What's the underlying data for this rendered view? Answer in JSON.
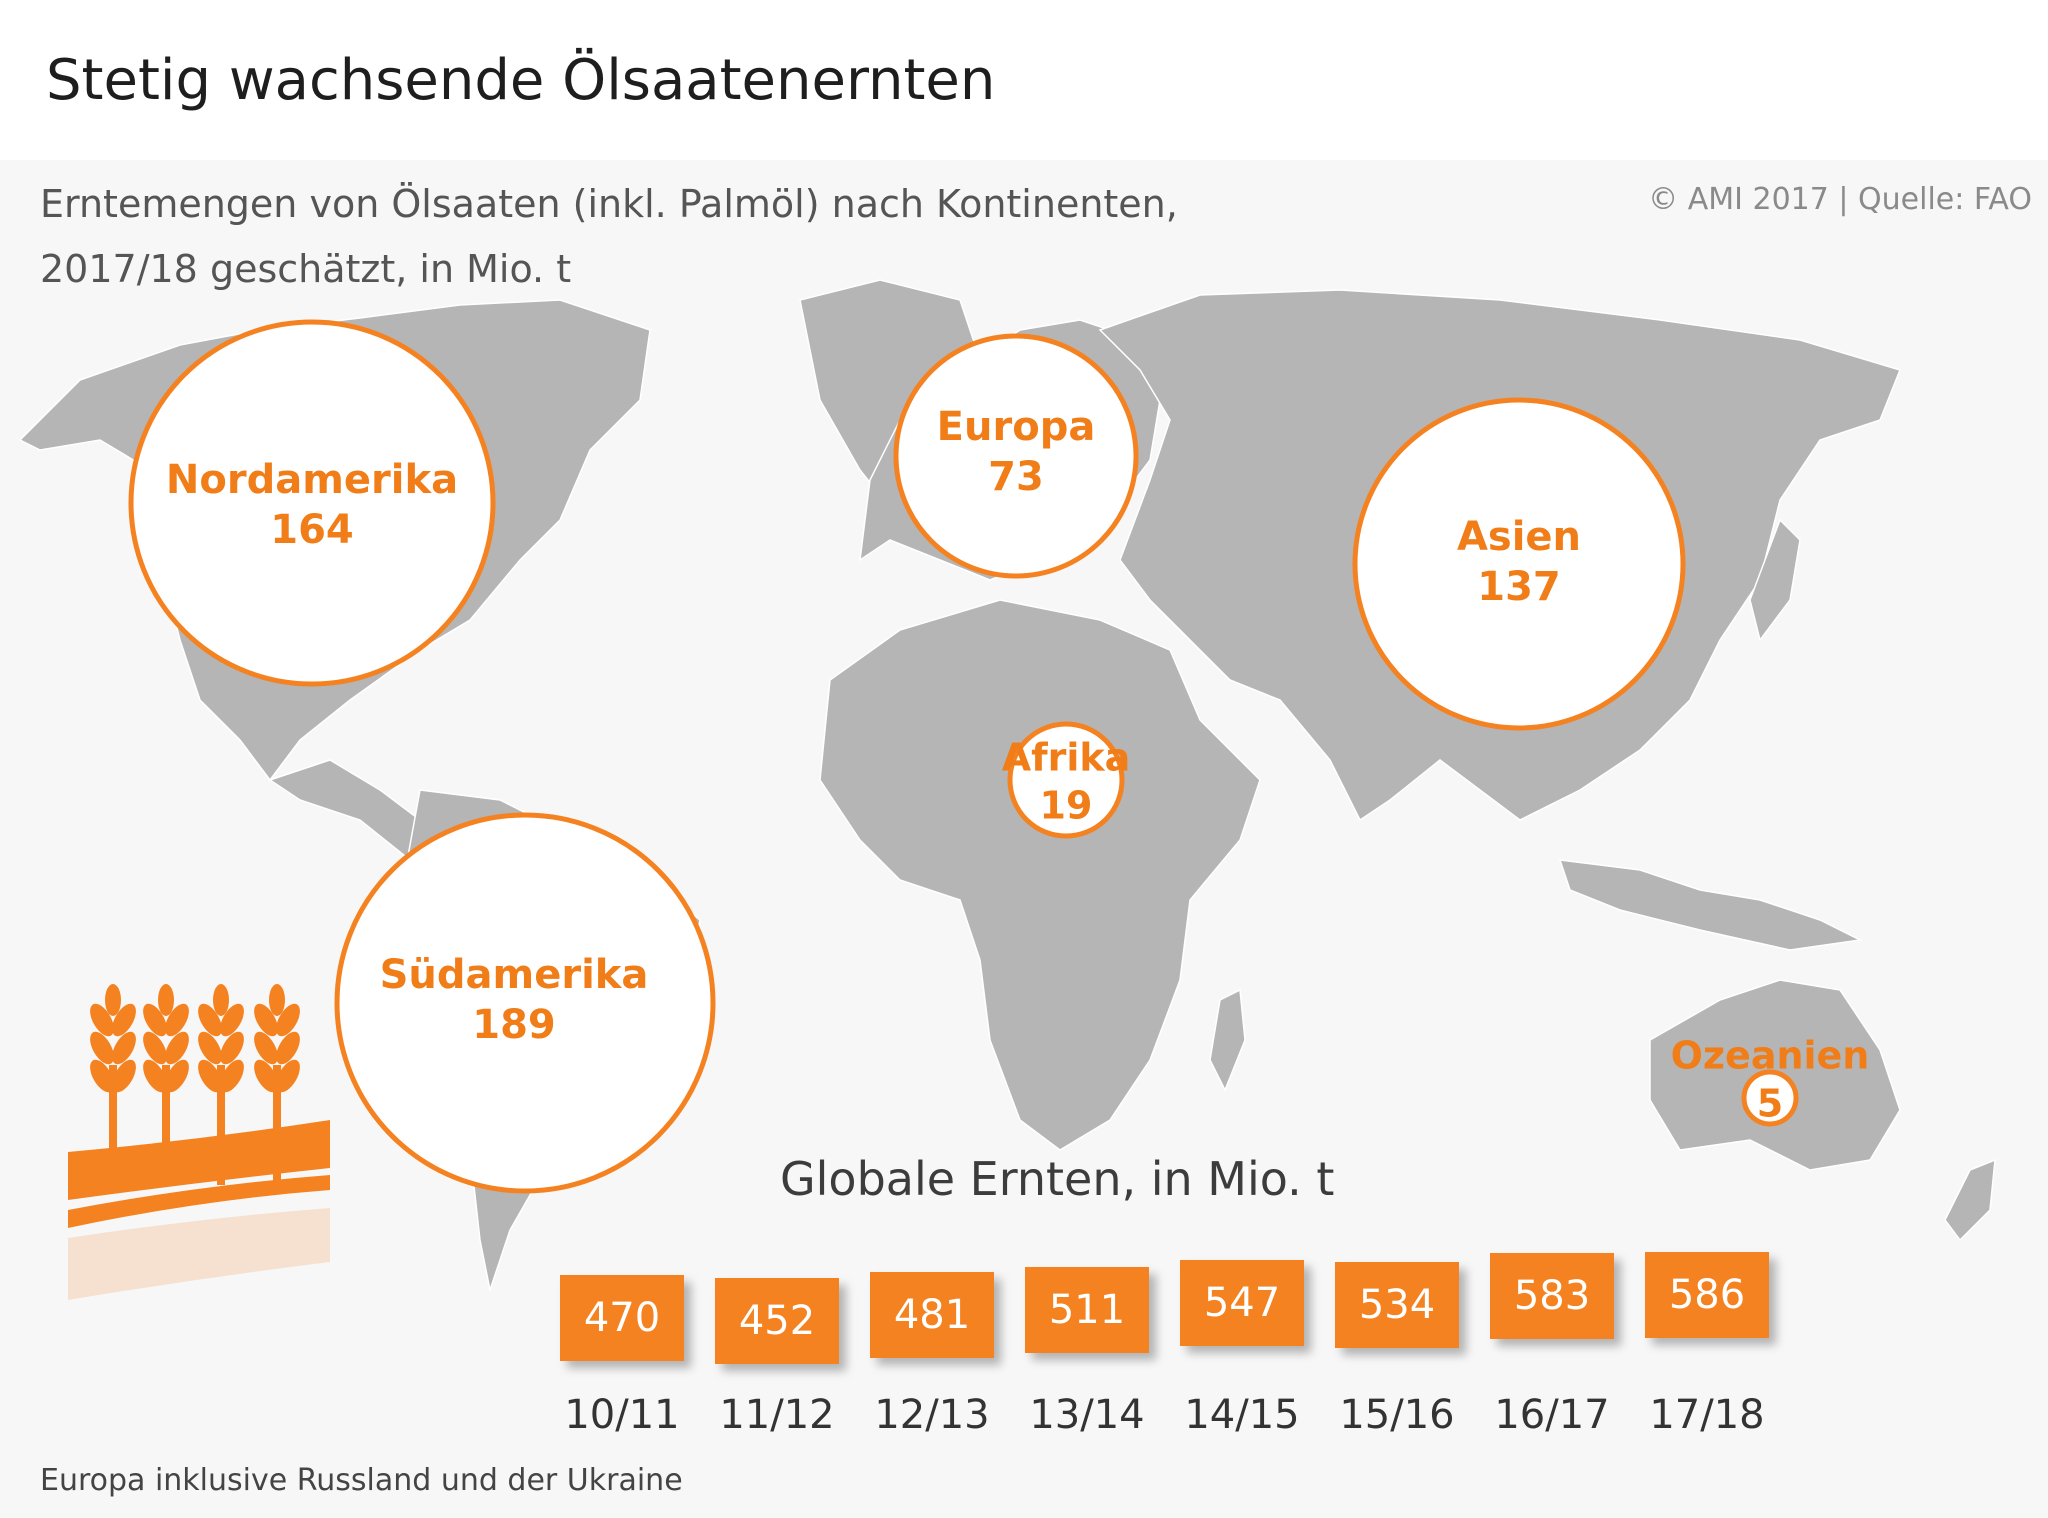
{
  "header": {
    "title": "Stetig wachsende Ölsaatenernten",
    "subtitle_line1": "Erntemengen von Ölsaaten (inkl. Palmöl) nach Kontinenten,",
    "subtitle_line2": "2017/18 geschätzt, in Mio. t",
    "source": "© AMI 2017 | Quelle: FAO"
  },
  "colors": {
    "accent": "#f58220",
    "accent_text": "#f07d17",
    "land": "#b5b5b5",
    "background": "#f7f7f7"
  },
  "icons": [
    "wheat-field-icon"
  ],
  "chart_data": [
    {
      "type": "bubble-map",
      "title": "Erntemengen von Ölsaaten (inkl. Palmöl) nach Kontinenten, 2017/18 geschätzt, in Mio. t",
      "unit": "Mio. t",
      "regions": [
        {
          "name": "Nordamerika",
          "value": 164
        },
        {
          "name": "Europa",
          "value": 73
        },
        {
          "name": "Asien",
          "value": 137
        },
        {
          "name": "Afrika",
          "value": 19
        },
        {
          "name": "Südamerika",
          "value": 189
        },
        {
          "name": "Ozeanien",
          "value": 5
        }
      ]
    },
    {
      "type": "bar",
      "title": "Globale Ernten, in Mio. t",
      "categories": [
        "10/11",
        "11/12",
        "12/13",
        "13/14",
        "14/15",
        "15/16",
        "16/17",
        "17/18"
      ],
      "values": [
        470,
        452,
        481,
        511,
        547,
        534,
        583,
        586
      ]
    }
  ],
  "footnote": "Europa inklusive Russland und der Ukraine"
}
